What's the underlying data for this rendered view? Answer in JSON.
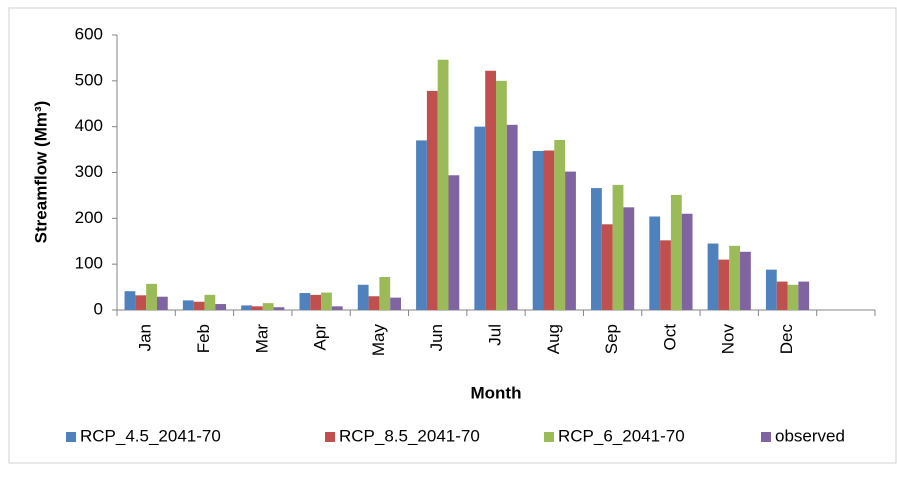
{
  "chart_data": {
    "type": "bar",
    "x_label": "Month",
    "y_label": "Streamflow (Mm³)",
    "categories": [
      "Jan",
      "Feb",
      "Mar",
      "Apr",
      "May",
      "Jun",
      "Jul",
      "Aug",
      "Sep",
      "Oct",
      "Nov",
      "Dec",
      null
    ],
    "series": [
      {
        "name": "RCP_4.5_2041-70",
        "color": "#4f81bd",
        "values": [
          41,
          21,
          10,
          37,
          55,
          370,
          400,
          347,
          266,
          204,
          145,
          88,
          null
        ]
      },
      {
        "name": "RCP_8.5_2041-70",
        "color": "#c0504d",
        "values": [
          32,
          18,
          8,
          33,
          30,
          478,
          522,
          348,
          187,
          152,
          110,
          62,
          null
        ]
      },
      {
        "name": "RCP_6_2041-70",
        "color": "#9bbb59",
        "values": [
          57,
          33,
          15,
          38,
          72,
          546,
          500,
          371,
          273,
          251,
          140,
          55,
          null
        ]
      },
      {
        "name": "observed",
        "color": "#8064a2",
        "values": [
          29,
          13,
          6,
          8,
          27,
          294,
          404,
          302,
          224,
          210,
          127,
          62,
          null
        ]
      }
    ],
    "ylim": [
      0,
      600
    ],
    "yticks": [
      0,
      100,
      200,
      300,
      400,
      500,
      600
    ],
    "grid": false,
    "legend": "bottom"
  }
}
